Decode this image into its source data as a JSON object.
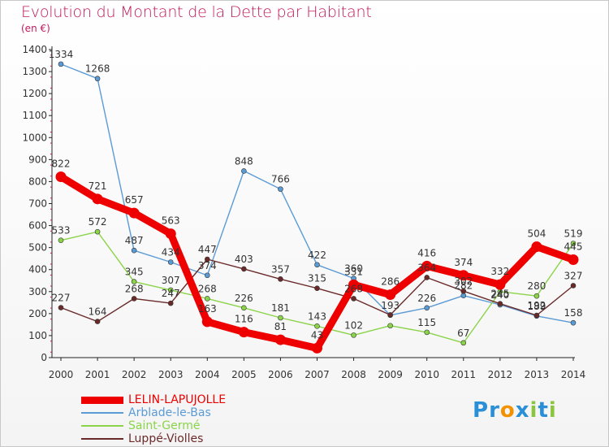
{
  "title": "Evolution du Montant de la Dette par Habitant",
  "unit": "(en €)",
  "logo": {
    "letters": [
      "P",
      "r",
      "o",
      "x",
      "i",
      "t",
      "i"
    ],
    "colors": [
      "#2a8fd6",
      "#2a8fd6",
      "#f39200",
      "#2a8fd6",
      "#8bc53f",
      "#2a8fd6",
      "#8bc53f"
    ]
  },
  "chart_data": {
    "type": "line",
    "x": [
      2000,
      2001,
      2002,
      2003,
      2004,
      2005,
      2006,
      2007,
      2008,
      2009,
      2010,
      2011,
      2012,
      2013,
      2014
    ],
    "ylim": [
      0,
      1400
    ],
    "yticks": [
      0,
      100,
      200,
      300,
      400,
      500,
      600,
      700,
      800,
      900,
      1000,
      1100,
      1200,
      1300,
      1400
    ],
    "grid": false,
    "legend_position": "bottom-left",
    "series": [
      {
        "name": "LELIN-LAPUJOLLE",
        "color": "#ee0000",
        "emphasis": true,
        "values": [
          822,
          721,
          657,
          563,
          163,
          116,
          81,
          43,
          331,
          286,
          416,
          374,
          332,
          504,
          445
        ]
      },
      {
        "name": "Arblade-le-Bas",
        "color": "#5b9bd5",
        "values": [
          1334,
          1268,
          487,
          434,
          374,
          848,
          766,
          422,
          360,
          193,
          226,
          282,
          240,
          189,
          158
        ]
      },
      {
        "name": "Saint-Germé",
        "color": "#8bd44a",
        "values": [
          533,
          572,
          345,
          307,
          268,
          226,
          181,
          143,
          102,
          145,
          115,
          67,
          300,
          280,
          519
        ]
      },
      {
        "name": "Luppé-Violles",
        "color": "#6b2a2a",
        "values": [
          227,
          164,
          268,
          247,
          447,
          403,
          357,
          315,
          268,
          194,
          364,
          302,
          245,
          192,
          327
        ]
      }
    ],
    "data_labels": [
      [
        "822",
        "721",
        "657",
        "563",
        "163",
        "116",
        "81",
        "43",
        "331",
        "286",
        "416",
        "374",
        "332",
        "504",
        "445"
      ],
      [
        "1334",
        "1268",
        "487",
        "434",
        "374",
        "848",
        "766",
        "422",
        "360",
        "193",
        "226",
        "282",
        "240",
        "189",
        "158"
      ],
      [
        "533",
        "572",
        "345",
        "307",
        "268",
        "226",
        "181",
        "143",
        "102",
        "",
        "115",
        "67",
        "",
        "280",
        "519"
      ],
      [
        "227",
        "164",
        "268",
        "247",
        "447",
        "403",
        "357",
        "315",
        "268",
        "",
        "364",
        "302",
        "245",
        "192",
        "327"
      ]
    ],
    "y_axis_color": "#c2185b"
  }
}
